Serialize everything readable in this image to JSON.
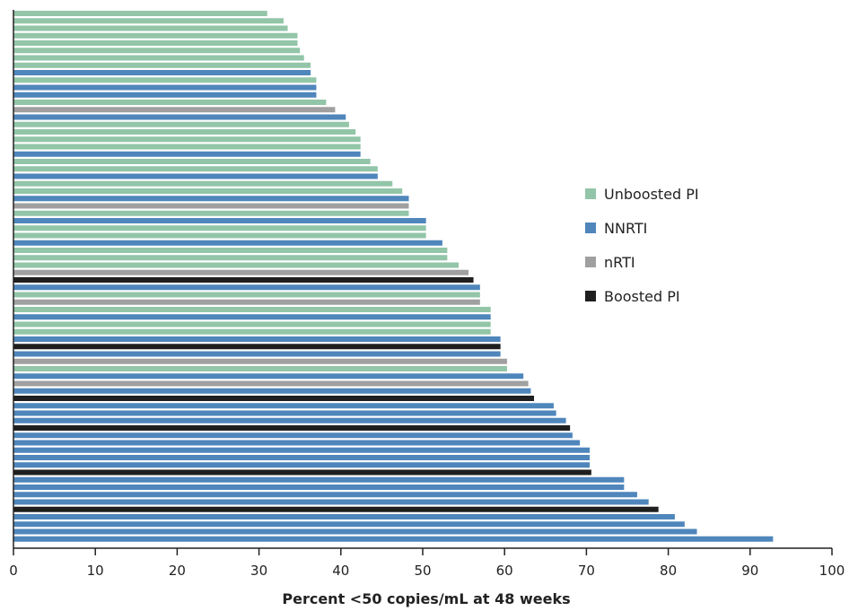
{
  "chart_data": {
    "type": "bar",
    "orientation": "horizontal",
    "title": "",
    "xlabel": "Percent <50 copies/mL at 48 weeks",
    "ylabel": "",
    "xlim": [
      0,
      100
    ],
    "xticks": [
      0,
      10,
      20,
      30,
      40,
      50,
      60,
      70,
      80,
      90,
      100
    ],
    "grid": false,
    "legend_position": "right",
    "colors": {
      "unboosted": "#93c5a8",
      "nnrti": "#4f86bb",
      "nrti": "#a0a0a0",
      "boosted": "#1f1f1f"
    },
    "legend": [
      {
        "key": "unboosted",
        "label": "Unboosted PI"
      },
      {
        "key": "nnrti",
        "label": "NNRTI"
      },
      {
        "key": "nrti",
        "label": "nRTI"
      },
      {
        "key": "boosted",
        "label": "Boosted PI"
      }
    ],
    "bars": [
      {
        "value": 31,
        "group": "unboosted"
      },
      {
        "value": 33,
        "group": "unboosted"
      },
      {
        "value": 33.5,
        "group": "unboosted"
      },
      {
        "value": 34.7,
        "group": "unboosted"
      },
      {
        "value": 34.7,
        "group": "unboosted"
      },
      {
        "value": 35,
        "group": "unboosted"
      },
      {
        "value": 35.5,
        "group": "unboosted"
      },
      {
        "value": 36.3,
        "group": "unboosted"
      },
      {
        "value": 36.3,
        "group": "nnrti"
      },
      {
        "value": 37,
        "group": "unboosted"
      },
      {
        "value": 37,
        "group": "nnrti"
      },
      {
        "value": 37,
        "group": "nnrti"
      },
      {
        "value": 38.2,
        "group": "unboosted"
      },
      {
        "value": 39.3,
        "group": "nrti"
      },
      {
        "value": 40.6,
        "group": "nnrti"
      },
      {
        "value": 41,
        "group": "unboosted"
      },
      {
        "value": 41.8,
        "group": "unboosted"
      },
      {
        "value": 42.4,
        "group": "unboosted"
      },
      {
        "value": 42.4,
        "group": "unboosted"
      },
      {
        "value": 42.4,
        "group": "nnrti"
      },
      {
        "value": 43.6,
        "group": "unboosted"
      },
      {
        "value": 44.5,
        "group": "unboosted"
      },
      {
        "value": 44.5,
        "group": "nnrti"
      },
      {
        "value": 46.3,
        "group": "unboosted"
      },
      {
        "value": 47.5,
        "group": "unboosted"
      },
      {
        "value": 48.3,
        "group": "nnrti"
      },
      {
        "value": 48.3,
        "group": "nrti"
      },
      {
        "value": 48.3,
        "group": "unboosted"
      },
      {
        "value": 50.4,
        "group": "nnrti"
      },
      {
        "value": 50.4,
        "group": "unboosted"
      },
      {
        "value": 50.4,
        "group": "unboosted"
      },
      {
        "value": 52.4,
        "group": "nnrti"
      },
      {
        "value": 53,
        "group": "unboosted"
      },
      {
        "value": 53,
        "group": "unboosted"
      },
      {
        "value": 54.4,
        "group": "unboosted"
      },
      {
        "value": 55.6,
        "group": "nrti"
      },
      {
        "value": 56.2,
        "group": "boosted"
      },
      {
        "value": 57,
        "group": "nnrti"
      },
      {
        "value": 57,
        "group": "unboosted"
      },
      {
        "value": 57,
        "group": "nrti"
      },
      {
        "value": 58.3,
        "group": "unboosted"
      },
      {
        "value": 58.3,
        "group": "nnrti"
      },
      {
        "value": 58.3,
        "group": "unboosted"
      },
      {
        "value": 58.3,
        "group": "unboosted"
      },
      {
        "value": 59.5,
        "group": "nnrti"
      },
      {
        "value": 59.5,
        "group": "boosted"
      },
      {
        "value": 59.5,
        "group": "nnrti"
      },
      {
        "value": 60.3,
        "group": "nrti"
      },
      {
        "value": 60.3,
        "group": "unboosted"
      },
      {
        "value": 62.3,
        "group": "nnrti"
      },
      {
        "value": 62.9,
        "group": "nrti"
      },
      {
        "value": 63.2,
        "group": "nnrti"
      },
      {
        "value": 63.6,
        "group": "boosted"
      },
      {
        "value": 66,
        "group": "nnrti"
      },
      {
        "value": 66.3,
        "group": "nnrti"
      },
      {
        "value": 67.5,
        "group": "nnrti"
      },
      {
        "value": 68,
        "group": "boosted"
      },
      {
        "value": 68.3,
        "group": "nnrti"
      },
      {
        "value": 69.2,
        "group": "nnrti"
      },
      {
        "value": 70.4,
        "group": "nnrti"
      },
      {
        "value": 70.4,
        "group": "nnrti"
      },
      {
        "value": 70.4,
        "group": "nnrti"
      },
      {
        "value": 70.6,
        "group": "boosted"
      },
      {
        "value": 74.6,
        "group": "nnrti"
      },
      {
        "value": 74.6,
        "group": "nnrti"
      },
      {
        "value": 76.2,
        "group": "nnrti"
      },
      {
        "value": 77.6,
        "group": "nnrti"
      },
      {
        "value": 78.8,
        "group": "boosted"
      },
      {
        "value": 80.8,
        "group": "nnrti"
      },
      {
        "value": 82,
        "group": "nnrti"
      },
      {
        "value": 83.5,
        "group": "nnrti"
      },
      {
        "value": 92.8,
        "group": "nnrti"
      }
    ]
  }
}
